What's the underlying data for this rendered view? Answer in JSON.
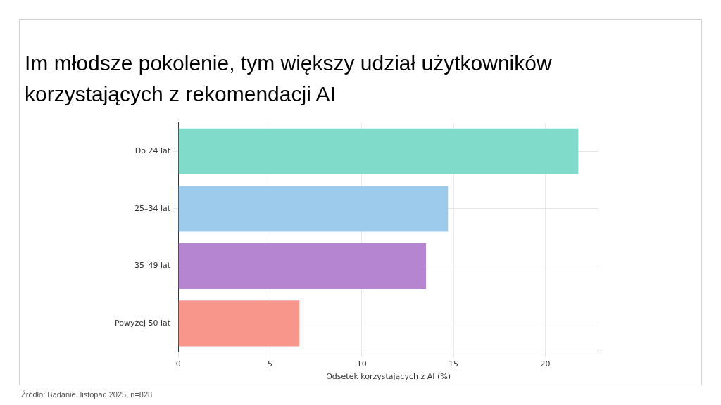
{
  "chart_data": {
    "type": "bar",
    "orientation": "horizontal",
    "title": "Im młodsze pokolenie, tym większy udział użytkowników korzystających z rekomendacji AI",
    "xlabel": "Odsetek korzystających z AI (%)",
    "categories": [
      "Do 24 lat",
      "25–34 lat",
      "35–49 lat",
      "Powyżej 50 lat"
    ],
    "values": [
      21.8,
      14.7,
      13.5,
      6.6
    ],
    "colors": [
      "#80dbcb",
      "#9ccbeb",
      "#b585d1",
      "#f9968b"
    ],
    "xlim": [
      0,
      22.9
    ],
    "xticks": [
      0,
      5,
      10,
      15,
      20
    ],
    "grid": true,
    "annotations": [
      "Źródło: Badanie, listopad 2025, n=828"
    ]
  }
}
